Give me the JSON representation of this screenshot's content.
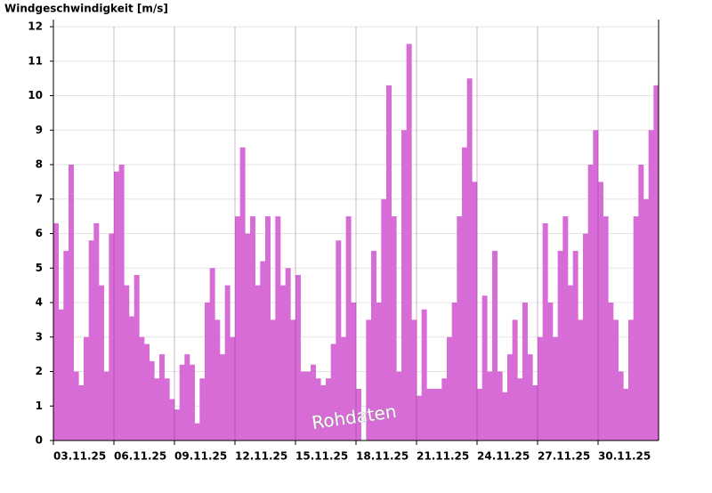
{
  "chart_data": {
    "type": "bar",
    "title": "Windgeschwindigkeit [m/s]",
    "annotation": "Rohdaten",
    "color": "#d76cd6",
    "xlim": [
      0,
      30
    ],
    "xticks": [
      {
        "value": 0,
        "label": "03.11.25"
      },
      {
        "value": 3,
        "label": "06.11.25"
      },
      {
        "value": 6,
        "label": "09.11.25"
      },
      {
        "value": 9,
        "label": "12.11.25"
      },
      {
        "value": 12,
        "label": "15.11.25"
      },
      {
        "value": 15,
        "label": "18.11.25"
      },
      {
        "value": 18,
        "label": "21.11.25"
      },
      {
        "value": 21,
        "label": "24.11.25"
      },
      {
        "value": 24,
        "label": "27.11.25"
      },
      {
        "value": 27,
        "label": "30.11.25"
      }
    ],
    "ylim": [
      0,
      12
    ],
    "yticks": [
      0,
      1,
      2,
      3,
      4,
      5,
      6,
      7,
      8,
      9,
      10,
      11,
      12
    ],
    "grid": true,
    "x": [
      0,
      0.25,
      0.5,
      0.75,
      1,
      1.25,
      1.5,
      1.75,
      2,
      2.25,
      2.5,
      2.75,
      3,
      3.25,
      3.5,
      3.75,
      4,
      4.25,
      4.5,
      4.75,
      5,
      5.25,
      5.5,
      5.75,
      6,
      6.25,
      6.5,
      6.75,
      7,
      7.25,
      7.5,
      7.75,
      8,
      8.25,
      8.5,
      8.75,
      9,
      9.25,
      9.5,
      9.75,
      10,
      10.25,
      10.5,
      10.75,
      11,
      11.25,
      11.5,
      11.75,
      12,
      12.25,
      12.5,
      12.75,
      13,
      13.25,
      13.5,
      13.75,
      14,
      14.25,
      14.5,
      14.75,
      15,
      15.25,
      15.5,
      15.75,
      16,
      16.25,
      16.5,
      16.75,
      17,
      17.25,
      17.5,
      17.75,
      18,
      18.25,
      18.5,
      18.75,
      19,
      19.25,
      19.5,
      19.75,
      20,
      20.25,
      20.5,
      20.75,
      21,
      21.25,
      21.5,
      21.75,
      22,
      22.25,
      22.5,
      22.75,
      23,
      23.25,
      23.5,
      23.75,
      24,
      24.25,
      24.5,
      24.75,
      25,
      25.25,
      25.5,
      25.75,
      26,
      26.25,
      26.5,
      26.75,
      27,
      27.25,
      27.5,
      27.75,
      28,
      28.25,
      28.5,
      28.75,
      29,
      29.25,
      29.5,
      29.75
    ],
    "values": [
      6.3,
      3.8,
      5.5,
      8.0,
      2.0,
      1.6,
      3.0,
      5.8,
      6.3,
      4.5,
      2.0,
      6.0,
      7.8,
      8.0,
      4.5,
      3.6,
      4.8,
      3.0,
      2.8,
      2.3,
      1.8,
      2.5,
      1.8,
      1.2,
      0.9,
      2.2,
      2.5,
      2.2,
      0.5,
      1.8,
      4.0,
      5.0,
      3.5,
      2.5,
      4.5,
      3.0,
      6.5,
      8.5,
      6.0,
      6.5,
      4.5,
      5.2,
      6.5,
      3.5,
      6.5,
      4.5,
      5.0,
      3.5,
      4.8,
      2.0,
      2.0,
      2.2,
      1.8,
      1.6,
      1.8,
      2.8,
      5.8,
      3.0,
      6.5,
      4.0,
      1.5,
      null,
      3.5,
      5.5,
      4.0,
      7.0,
      10.3,
      6.5,
      2.0,
      9.0,
      11.5,
      3.5,
      1.3,
      3.8,
      1.5,
      1.5,
      1.5,
      1.8,
      3.0,
      4.0,
      6.5,
      8.5,
      10.5,
      7.5,
      1.5,
      4.2,
      2.0,
      5.5,
      2.0,
      1.4,
      2.5,
      3.5,
      1.8,
      4.0,
      2.5,
      1.6,
      3.0,
      6.3,
      4.0,
      3.0,
      5.5,
      6.5,
      4.5,
      5.5,
      3.5,
      6.0,
      8.0,
      9.0,
      7.5,
      6.5,
      4.0,
      3.5,
      2.0,
      1.5,
      3.5,
      6.5,
      8.0,
      7.0,
      9.0,
      10.3
    ]
  }
}
